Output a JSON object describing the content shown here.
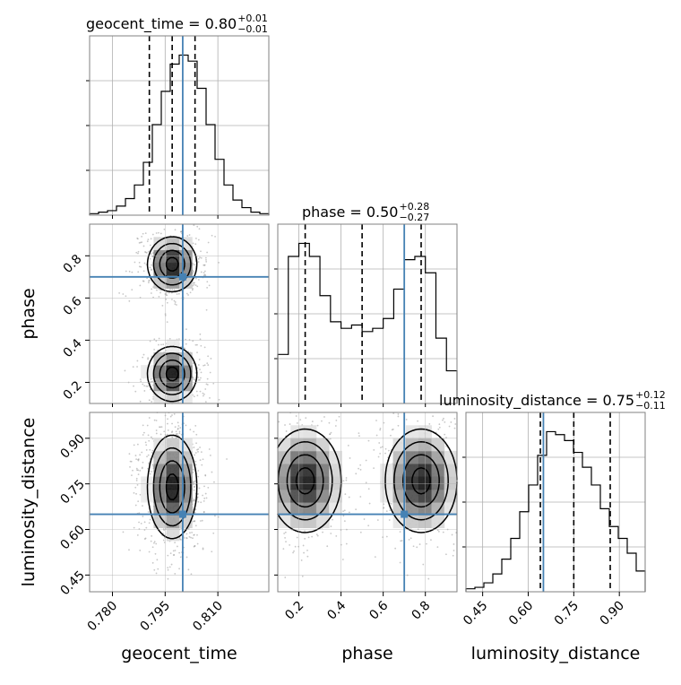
{
  "colors": {
    "truth": "#4682b4",
    "hist": "#000000",
    "grid": "#b0b0b0",
    "frame": "#808080",
    "quantile": "#000000"
  },
  "chart_data": {
    "type": "corner",
    "grid": true,
    "parameters": [
      "geocent_time",
      "phase",
      "luminosity_distance"
    ],
    "truths": {
      "geocent_time": 0.8,
      "phase": 0.7,
      "luminosity_distance": 0.65
    },
    "ranges": {
      "geocent_time": [
        0.7735,
        0.8245
      ],
      "phase": [
        0.1,
        0.95
      ],
      "luminosity_distance": [
        0.395,
        0.985
      ]
    },
    "tick_labels": {
      "geocent_time": [
        "0.780",
        "0.795",
        "0.810"
      ],
      "phase": [
        "0.2",
        "0.4",
        "0.6",
        "0.8"
      ],
      "luminosity_distance": [
        "0.45",
        "0.60",
        "0.75",
        "0.90"
      ]
    },
    "axis_labels": {
      "x": [
        "geocent_time",
        "phase",
        "luminosity_distance"
      ],
      "y": [
        "phase",
        "luminosity_distance"
      ]
    },
    "titles": [
      {
        "param": "geocent_time",
        "text": "geocent_time = 0.80",
        "sup": "+0.01",
        "sub": "−0.01"
      },
      {
        "param": "phase",
        "text": "phase = 0.50",
        "sup": "+0.28",
        "sub": "−0.27"
      },
      {
        "param": "luminosity_distance",
        "text": "luminosity_distance = 0.75",
        "sup": "+0.12",
        "sub": "−0.11"
      }
    ],
    "quantiles": {
      "geocent_time": [
        0.7905,
        0.797,
        0.8035
      ],
      "phase": [
        0.23,
        0.5,
        0.78
      ],
      "luminosity_distance": [
        0.64,
        0.75,
        0.87
      ]
    },
    "histograms": {
      "geocent_time": {
        "range": [
          0.7735,
          0.8245
        ],
        "counts": [
          1,
          2,
          3,
          6,
          11,
          20,
          35,
          60,
          82,
          100,
          106,
          102,
          84,
          60,
          37,
          20,
          10,
          5,
          2,
          1
        ]
      },
      "phase": {
        "range": [
          0.1,
          0.95
        ],
        "counts": [
          30,
          90,
          98,
          90,
          66,
          50,
          46,
          48,
          44,
          46,
          52,
          70,
          88,
          90,
          80,
          40,
          20
        ]
      },
      "luminosity_distance": {
        "range": [
          0.395,
          0.985
        ],
        "counts": [
          2,
          3,
          6,
          12,
          22,
          36,
          54,
          72,
          92,
          108,
          106,
          102,
          94,
          84,
          72,
          56,
          44,
          36,
          26,
          14
        ]
      }
    },
    "density_2d": {
      "phase_vs_geocent_time": [
        {
          "x": 0.797,
          "y": 0.76,
          "sx": 0.0035,
          "sy": 0.065,
          "w": 1.0
        },
        {
          "x": 0.797,
          "y": 0.24,
          "sx": 0.0035,
          "sy": 0.065,
          "w": 1.0
        }
      ],
      "luminosity_distance_vs_geocent_time": [
        {
          "x": 0.797,
          "y": 0.74,
          "sx": 0.0035,
          "sy": 0.085,
          "w": 1.0
        }
      ],
      "luminosity_distance_vs_phase": [
        {
          "x": 0.23,
          "y": 0.76,
          "sx": 0.085,
          "sy": 0.085,
          "w": 1.0
        },
        {
          "x": 0.78,
          "y": 0.76,
          "sx": 0.085,
          "sy": 0.085,
          "w": 1.0
        }
      ]
    }
  }
}
